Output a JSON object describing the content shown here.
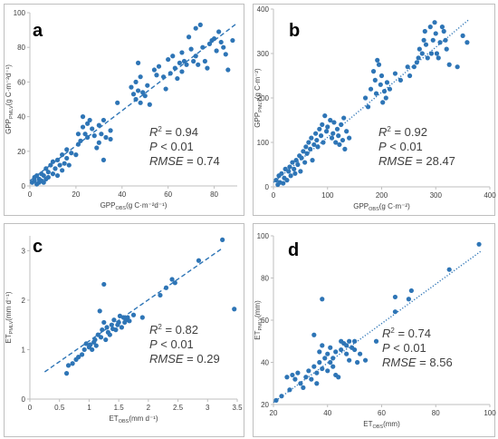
{
  "chart_data": [
    {
      "type": "scatter",
      "panel": "a",
      "xlabel": "GPP",
      "xlabel_sub": "OBS",
      "xlabel_unit": "(g C·m⁻²d⁻¹)",
      "ylabel": "GPP",
      "ylabel_sub": "PMLV",
      "ylabel_unit": "(g C·m⁻²d⁻¹)",
      "xlim": [
        0,
        90
      ],
      "ylim": [
        0,
        100
      ],
      "xticks": [
        0,
        20,
        40,
        60,
        80
      ],
      "yticks": [
        0,
        20,
        40,
        60,
        80,
        100
      ],
      "r2": "0.94",
      "p": "0.01",
      "rmse": "0.74",
      "fit": [
        [
          0,
          3
        ],
        [
          90,
          94
        ]
      ],
      "fit_style": "dashed",
      "points": [
        [
          1,
          2
        ],
        [
          2,
          5
        ],
        [
          2,
          3
        ],
        [
          3,
          1
        ],
        [
          3,
          6
        ],
        [
          4,
          4
        ],
        [
          4,
          2
        ],
        [
          5,
          3
        ],
        [
          5,
          7
        ],
        [
          6,
          2
        ],
        [
          6,
          6
        ],
        [
          7,
          4
        ],
        [
          7,
          10
        ],
        [
          8,
          5
        ],
        [
          8,
          8
        ],
        [
          9,
          12
        ],
        [
          10,
          7
        ],
        [
          10,
          14
        ],
        [
          11,
          10
        ],
        [
          12,
          6
        ],
        [
          12,
          15
        ],
        [
          13,
          12
        ],
        [
          14,
          9
        ],
        [
          14,
          18
        ],
        [
          15,
          13
        ],
        [
          16,
          16
        ],
        [
          16,
          21
        ],
        [
          17,
          12
        ],
        [
          18,
          19
        ],
        [
          20,
          18
        ],
        [
          21,
          24
        ],
        [
          21,
          30
        ],
        [
          22,
          26
        ],
        [
          23,
          40
        ],
        [
          23,
          34
        ],
        [
          24,
          30
        ],
        [
          25,
          28
        ],
        [
          25,
          36
        ],
        [
          26,
          38
        ],
        [
          27,
          33
        ],
        [
          28,
          29
        ],
        [
          29,
          22
        ],
        [
          30,
          35
        ],
        [
          30,
          25
        ],
        [
          31,
          30
        ],
        [
          32,
          15
        ],
        [
          32,
          38
        ],
        [
          33,
          28
        ],
        [
          35,
          27
        ],
        [
          35,
          32
        ],
        [
          38,
          48
        ],
        [
          44,
          57
        ],
        [
          45,
          53
        ],
        [
          46,
          60
        ],
        [
          46,
          50
        ],
        [
          47,
          55
        ],
        [
          47,
          71
        ],
        [
          48,
          63
        ],
        [
          48,
          48
        ],
        [
          49,
          54
        ],
        [
          50,
          52
        ],
        [
          51,
          58
        ],
        [
          52,
          47
        ],
        [
          54,
          67
        ],
        [
          55,
          64
        ],
        [
          56,
          69
        ],
        [
          58,
          63
        ],
        [
          59,
          56
        ],
        [
          60,
          73
        ],
        [
          61,
          65
        ],
        [
          62,
          75
        ],
        [
          63,
          68
        ],
        [
          64,
          62
        ],
        [
          65,
          71
        ],
        [
          66,
          77
        ],
        [
          66,
          66
        ],
        [
          67,
          72
        ],
        [
          68,
          70
        ],
        [
          69,
          86
        ],
        [
          70,
          79
        ],
        [
          71,
          72
        ],
        [
          72,
          91
        ],
        [
          72,
          75
        ],
        [
          73,
          70
        ],
        [
          74,
          93
        ],
        [
          75,
          80
        ],
        [
          76,
          72
        ],
        [
          77,
          68
        ],
        [
          78,
          82
        ],
        [
          79,
          84
        ],
        [
          80,
          85
        ],
        [
          81,
          78
        ],
        [
          82,
          89
        ],
        [
          83,
          83
        ],
        [
          84,
          80
        ],
        [
          85,
          76
        ],
        [
          86,
          67
        ],
        [
          88,
          84
        ]
      ]
    },
    {
      "type": "scatter",
      "panel": "b",
      "xlabel": "GPP",
      "xlabel_sub": "OBS",
      "xlabel_unit": "(g C·m⁻²)",
      "ylabel": "GPP",
      "ylabel_sub": "PMLV",
      "ylabel_unit": "(g C·m⁻²)",
      "xlim": [
        0,
        400
      ],
      "ylim": [
        0,
        400
      ],
      "xticks": [
        0,
        100,
        200,
        300,
        400
      ],
      "yticks": [
        0,
        100,
        200,
        300,
        400
      ],
      "r2": "0.92",
      "p": "0.01",
      "rmse": "28.47",
      "fit": [
        [
          0,
          10
        ],
        [
          360,
          375
        ]
      ],
      "fit_style": "dotted",
      "points": [
        [
          5,
          15
        ],
        [
          8,
          5
        ],
        [
          10,
          25
        ],
        [
          12,
          10
        ],
        [
          15,
          30
        ],
        [
          18,
          8
        ],
        [
          20,
          20
        ],
        [
          22,
          40
        ],
        [
          25,
          15
        ],
        [
          28,
          35
        ],
        [
          30,
          45
        ],
        [
          32,
          25
        ],
        [
          35,
          55
        ],
        [
          38,
          40
        ],
        [
          40,
          30
        ],
        [
          42,
          60
        ],
        [
          45,
          50
        ],
        [
          48,
          70
        ],
        [
          50,
          35
        ],
        [
          52,
          65
        ],
        [
          55,
          80
        ],
        [
          58,
          55
        ],
        [
          60,
          90
        ],
        [
          62,
          75
        ],
        [
          65,
          100
        ],
        [
          68,
          85
        ],
        [
          70,
          110
        ],
        [
          72,
          60
        ],
        [
          75,
          95
        ],
        [
          78,
          120
        ],
        [
          80,
          105
        ],
        [
          82,
          90
        ],
        [
          85,
          130
        ],
        [
          88,
          115
        ],
        [
          90,
          140
        ],
        [
          92,
          100
        ],
        [
          95,
          160
        ],
        [
          98,
          125
        ],
        [
          100,
          135
        ],
        [
          105,
          150
        ],
        [
          108,
          110
        ],
        [
          110,
          120
        ],
        [
          112,
          145
        ],
        [
          115,
          100
        ],
        [
          118,
          130
        ],
        [
          120,
          115
        ],
        [
          122,
          95
        ],
        [
          125,
          140
        ],
        [
          128,
          105
        ],
        [
          130,
          155
        ],
        [
          132,
          85
        ],
        [
          135,
          125
        ],
        [
          140,
          110
        ],
        [
          170,
          200
        ],
        [
          175,
          180
        ],
        [
          180,
          220
        ],
        [
          185,
          260
        ],
        [
          188,
          240
        ],
        [
          190,
          210
        ],
        [
          192,
          285
        ],
        [
          195,
          275
        ],
        [
          198,
          230
        ],
        [
          200,
          250
        ],
        [
          202,
          190
        ],
        [
          205,
          215
        ],
        [
          208,
          200
        ],
        [
          210,
          235
        ],
        [
          215,
          220
        ],
        [
          225,
          255
        ],
        [
          235,
          240
        ],
        [
          248,
          270
        ],
        [
          252,
          250
        ],
        [
          260,
          270
        ],
        [
          265,
          280
        ],
        [
          268,
          290
        ],
        [
          270,
          310
        ],
        [
          275,
          300
        ],
        [
          278,
          330
        ],
        [
          280,
          350
        ],
        [
          282,
          320
        ],
        [
          285,
          290
        ],
        [
          290,
          360
        ],
        [
          292,
          300
        ],
        [
          295,
          330
        ],
        [
          298,
          370
        ],
        [
          300,
          345
        ],
        [
          302,
          300
        ],
        [
          305,
          290
        ],
        [
          308,
          325
        ],
        [
          312,
          360
        ],
        [
          315,
          350
        ],
        [
          318,
          330
        ],
        [
          320,
          310
        ],
        [
          325,
          275
        ],
        [
          340,
          270
        ],
        [
          350,
          340
        ],
        [
          358,
          325
        ]
      ]
    },
    {
      "type": "scatter",
      "panel": "c",
      "xlabel": "ET",
      "xlabel_sub": "OBS",
      "xlabel_unit": "(mm d⁻¹)",
      "ylabel": "ET",
      "ylabel_sub": "PMLV",
      "ylabel_unit": "(mm d⁻¹)",
      "xlim": [
        0,
        3.5
      ],
      "ylim": [
        0,
        3.3
      ],
      "xticks": [
        0,
        0.5,
        1,
        1.5,
        2,
        2.5,
        3,
        3.5
      ],
      "yticks": [
        0,
        1,
        2,
        3
      ],
      "r2": "0.82",
      "p": "0.01",
      "rmse": "0.29",
      "fit": [
        [
          0.25,
          0.55
        ],
        [
          3.25,
          3.05
        ]
      ],
      "fit_style": "dashed",
      "points": [
        [
          0.62,
          0.52
        ],
        [
          0.65,
          0.68
        ],
        [
          0.72,
          0.72
        ],
        [
          0.78,
          0.8
        ],
        [
          0.82,
          0.85
        ],
        [
          0.88,
          0.9
        ],
        [
          0.92,
          1.0
        ],
        [
          0.95,
          1.12
        ],
        [
          1.0,
          1.05
        ],
        [
          1.02,
          1.1
        ],
        [
          1.05,
          1.0
        ],
        [
          1.08,
          1.15
        ],
        [
          1.1,
          1.2
        ],
        [
          1.12,
          1.08
        ],
        [
          1.15,
          1.3
        ],
        [
          1.18,
          1.78
        ],
        [
          1.2,
          1.25
        ],
        [
          1.22,
          1.4
        ],
        [
          1.25,
          1.55
        ],
        [
          1.25,
          2.32
        ],
        [
          1.28,
          1.2
        ],
        [
          1.3,
          1.45
        ],
        [
          1.32,
          1.35
        ],
        [
          1.35,
          1.3
        ],
        [
          1.38,
          1.5
        ],
        [
          1.4,
          1.42
        ],
        [
          1.42,
          1.6
        ],
        [
          1.45,
          1.4
        ],
        [
          1.48,
          1.5
        ],
        [
          1.5,
          1.55
        ],
        [
          1.52,
          1.68
        ],
        [
          1.55,
          1.45
        ],
        [
          1.58,
          1.65
        ],
        [
          1.6,
          1.55
        ],
        [
          1.62,
          1.6
        ],
        [
          1.65,
          1.65
        ],
        [
          1.68,
          1.58
        ],
        [
          1.75,
          1.7
        ],
        [
          1.9,
          1.65
        ],
        [
          2.2,
          2.1
        ],
        [
          2.3,
          2.25
        ],
        [
          2.4,
          2.42
        ],
        [
          2.45,
          2.35
        ],
        [
          2.85,
          2.8
        ],
        [
          3.25,
          3.22
        ],
        [
          3.45,
          1.82
        ]
      ]
    },
    {
      "type": "scatter",
      "panel": "d",
      "xlabel": "ET",
      "xlabel_sub": "OBS",
      "xlabel_unit": "(mm)",
      "ylabel": "ET",
      "ylabel_sub": "PMLV",
      "ylabel_unit": "(mm)",
      "xlim": [
        20,
        100
      ],
      "ylim": [
        20,
        100
      ],
      "xticks": [
        20,
        40,
        60,
        80,
        100
      ],
      "yticks": [
        20,
        40,
        60,
        80,
        100
      ],
      "r2": "0.74",
      "p": "0.01",
      "rmse": "8.56",
      "fit": [
        [
          20,
          21
        ],
        [
          97,
          93
        ]
      ],
      "fit_style": "dotted",
      "points": [
        [
          21,
          22
        ],
        [
          23,
          24
        ],
        [
          25,
          33
        ],
        [
          26,
          27
        ],
        [
          27,
          34
        ],
        [
          28,
          32
        ],
        [
          29,
          35
        ],
        [
          30,
          30
        ],
        [
          31,
          28
        ],
        [
          32,
          33
        ],
        [
          33,
          36
        ],
        [
          34,
          32
        ],
        [
          35,
          38
        ],
        [
          35,
          53
        ],
        [
          36,
          30
        ],
        [
          36,
          35
        ],
        [
          37,
          40
        ],
        [
          37,
          45
        ],
        [
          38,
          37
        ],
        [
          38,
          48
        ],
        [
          38,
          70
        ],
        [
          39,
          42
        ],
        [
          40,
          36
        ],
        [
          40,
          44
        ],
        [
          41,
          40
        ],
        [
          41,
          47
        ],
        [
          42,
          42
        ],
        [
          42,
          38
        ],
        [
          43,
          34
        ],
        [
          43,
          45
        ],
        [
          44,
          33
        ],
        [
          45,
          46
        ],
        [
          45,
          50
        ],
        [
          46,
          49
        ],
        [
          47,
          48
        ],
        [
          47,
          44
        ],
        [
          48,
          50
        ],
        [
          48,
          41
        ],
        [
          49,
          47
        ],
        [
          50,
          50
        ],
        [
          50,
          46
        ],
        [
          51,
          40
        ],
        [
          52,
          44
        ],
        [
          54,
          41
        ],
        [
          58,
          50
        ],
        [
          65,
          64
        ],
        [
          65,
          71
        ],
        [
          70,
          70
        ],
        [
          71,
          74
        ],
        [
          85,
          84
        ],
        [
          96,
          96
        ]
      ]
    }
  ]
}
